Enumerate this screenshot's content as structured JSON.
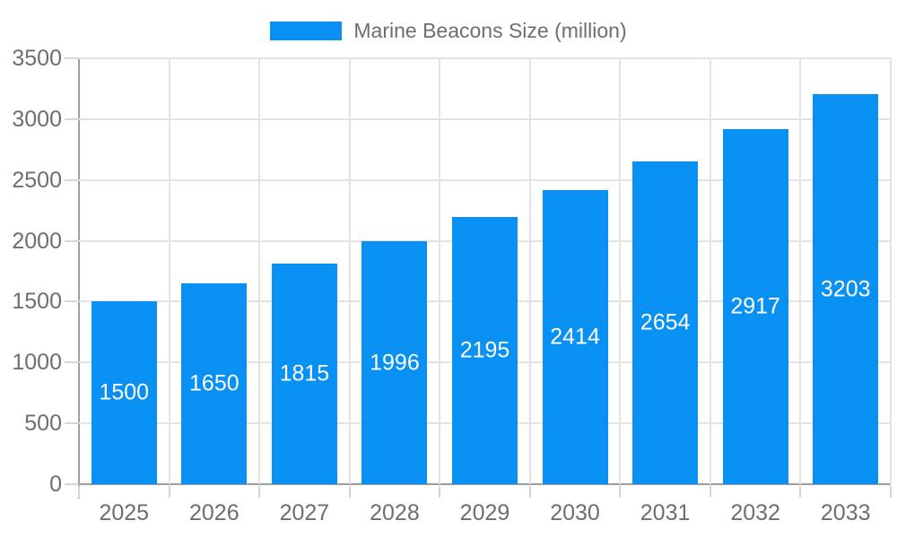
{
  "chart_data": {
    "type": "bar",
    "title": "",
    "legend": {
      "position": "top",
      "label": "Marine Beacons Size (million)"
    },
    "categories": [
      "2025",
      "2026",
      "2027",
      "2028",
      "2029",
      "2030",
      "2031",
      "2032",
      "2033"
    ],
    "series": [
      {
        "name": "Marine Beacons Size (million)",
        "values": [
          1500,
          1650,
          1815,
          1996,
          2195,
          2414,
          2654,
          2917,
          3203
        ]
      }
    ],
    "value_labels_shown": true,
    "xlabel": "",
    "ylabel": "",
    "ylim": [
      0,
      3500
    ],
    "yticks": [
      0,
      500,
      1000,
      1500,
      2000,
      2500,
      3000,
      3500
    ],
    "grid": true,
    "colors": {
      "bar": "#0890f2",
      "bar_value_text": "#ffffff",
      "axis_text": "#6e6e6e",
      "legend_text": "#6e6e6e",
      "grid_line": "#e3e3e3",
      "axis_line": "#9e9e9e",
      "tick_mark": "#d6d6d6",
      "background": "#ffffff"
    }
  }
}
